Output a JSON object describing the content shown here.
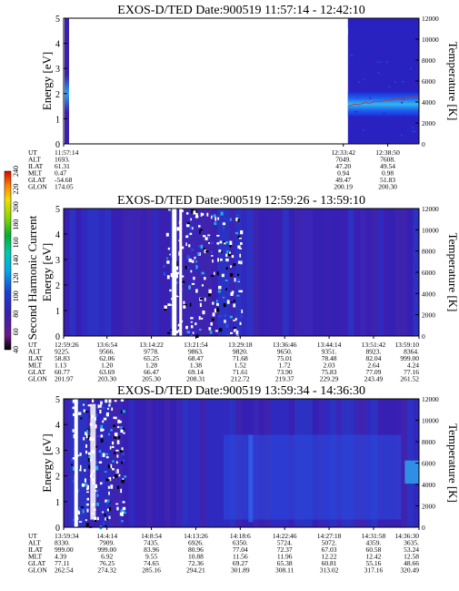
{
  "colorbar": {
    "label": "Second Harmonic Current",
    "ticks": [
      "40",
      "60",
      "80",
      "100",
      "120",
      "140",
      "160",
      "180",
      "200",
      "220",
      "240"
    ]
  },
  "chart_data": [
    {
      "type": "heatmap",
      "title": "EXOS-D/TED   Date:900519   11:57:14 - 12:42:10",
      "ylabel": "Energy [eV]",
      "y2label": "Temperature [K]",
      "ylim": [
        0,
        5
      ],
      "y2lim": [
        0,
        12000
      ],
      "yticks": [
        "0",
        "1",
        "2",
        "3",
        "4",
        "5"
      ],
      "y2ticks": [
        "0",
        "2000",
        "4000",
        "6000",
        "8000",
        "10000",
        "12000"
      ],
      "footer_labels": [
        "UT",
        "ALT",
        "ILAT",
        "MLT",
        "GLAT",
        "GLON"
      ],
      "footer_columns": [
        {
          "pos": 0.0,
          "values": [
            "11:57:14",
            "1693.",
            "61.31",
            "0.47",
            "-54.68",
            "174.05"
          ]
        },
        {
          "pos": 0.787,
          "values": [
            "12:33:42",
            "7049.",
            "47.20",
            "0.94",
            "49.47",
            "200.19"
          ]
        },
        {
          "pos": 0.912,
          "values": [
            "12:38:50",
            "7608.",
            "49.54",
            "0.98",
            "51.83",
            "200.30"
          ]
        }
      ]
    },
    {
      "type": "heatmap",
      "title": "EXOS-D/TED   Date:900519   12:59:26 - 13:59:10",
      "ylabel": "Energy [eV]",
      "y2label": "Temperature [K]",
      "ylim": [
        0,
        5
      ],
      "y2lim": [
        0,
        12000
      ],
      "yticks": [
        "0",
        "1",
        "2",
        "3",
        "4",
        "5"
      ],
      "y2ticks": [
        "0",
        "2000",
        "4000",
        "6000",
        "8000",
        "10000",
        "12000"
      ],
      "footer_labels": [
        "UT",
        "ALT",
        "ILAT",
        "MLT",
        "GLAT",
        "GLON"
      ],
      "footer_columns": [
        {
          "pos": 0.0,
          "values": [
            "12:59:26",
            "9225.",
            "58.83",
            "1.13",
            "60.77",
            "201.97"
          ]
        },
        {
          "pos": 0.122,
          "values": [
            "13:6:54",
            "9566.",
            "62.06",
            "1.20",
            "63.69",
            "203.30"
          ]
        },
        {
          "pos": 0.247,
          "values": [
            "13:14:22",
            "9778.",
            "65.25",
            "1.28",
            "66.47",
            "205.30"
          ]
        },
        {
          "pos": 0.372,
          "values": [
            "13:21:54",
            "9863.",
            "68.47",
            "1.38",
            "69.14",
            "208.31"
          ]
        },
        {
          "pos": 0.497,
          "values": [
            "13:29:18",
            "9820.",
            "71.68",
            "1.52",
            "71.61",
            "212.72"
          ]
        },
        {
          "pos": 0.622,
          "values": [
            "13:36:46",
            "9650.",
            "75.01",
            "1.72",
            "73.90",
            "219.37"
          ]
        },
        {
          "pos": 0.747,
          "values": [
            "13:44:14",
            "9351.",
            "78.48",
            "2.03",
            "75.83",
            "229.29"
          ]
        },
        {
          "pos": 0.872,
          "values": [
            "13:51:42",
            "8923.",
            "82.04",
            "2.64",
            "77.09",
            "243.49"
          ]
        },
        {
          "pos": 1.0,
          "values": [
            "13:59:10",
            "8364.",
            "999.00",
            "4.24",
            "77.16",
            "261.52"
          ]
        }
      ]
    },
    {
      "type": "heatmap",
      "title": "EXOS-D/TED   Date:900519   13:59:34 - 14:36:30",
      "ylabel": "Energy [eV]",
      "y2label": "Temperature [K]",
      "ylim": [
        0,
        5
      ],
      "y2lim": [
        0,
        12000
      ],
      "yticks": [
        "0",
        "1",
        "2",
        "3",
        "4",
        "5"
      ],
      "y2ticks": [
        "0",
        "2000",
        "4000",
        "6000",
        "8000",
        "10000",
        "12000"
      ],
      "footer_labels": [
        "UT",
        "ALT",
        "ILAT",
        "MLT",
        "GLAT",
        "GLON"
      ],
      "footer_columns": [
        {
          "pos": 0.0,
          "values": [
            "13:59:34",
            "8330.",
            "999.00",
            "4.39",
            "77.11",
            "262.54"
          ]
        },
        {
          "pos": 0.122,
          "values": [
            "14:4:14",
            "7909.",
            "999.00",
            "6.92",
            "76.25",
            "274.32"
          ]
        },
        {
          "pos": 0.247,
          "values": [
            "14:8:54",
            "7435.",
            "83.96",
            "9.55",
            "74.65",
            "285.16"
          ]
        },
        {
          "pos": 0.372,
          "values": [
            "14:13:26",
            "6926.",
            "80.96",
            "10.88",
            "72.36",
            "294.21"
          ]
        },
        {
          "pos": 0.497,
          "values": [
            "14:18:6",
            "6350.",
            "77.04",
            "11.56",
            "69.27",
            "301.89"
          ]
        },
        {
          "pos": 0.622,
          "values": [
            "14:22:46",
            "5724.",
            "72.37",
            "11.96",
            "65.38",
            "308.11"
          ]
        },
        {
          "pos": 0.747,
          "values": [
            "14:27:18",
            "5072.",
            "67.03",
            "12.22",
            "60.81",
            "313.02"
          ]
        },
        {
          "pos": 0.872,
          "values": [
            "14:31:58",
            "4359.",
            "60.58",
            "12.42",
            "55.16",
            "317.16"
          ]
        },
        {
          "pos": 1.0,
          "values": [
            "14:36:30",
            "3635.",
            "53.24",
            "12.58",
            "48.66",
            "320.49"
          ]
        }
      ]
    }
  ]
}
